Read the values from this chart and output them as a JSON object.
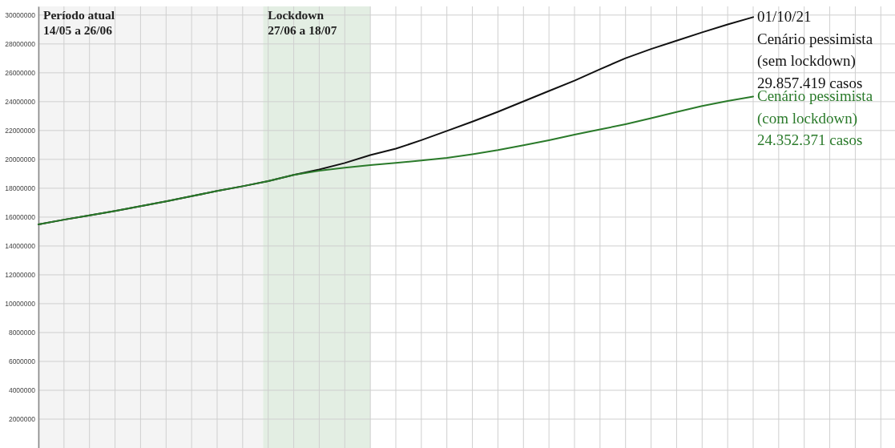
{
  "chart_data": {
    "type": "line",
    "tick_labels": "y",
    "grid": true,
    "categories": [
      null,
      null,
      null,
      null,
      null,
      null,
      null,
      null,
      null,
      null,
      null,
      null,
      null,
      null,
      null,
      null,
      null,
      null,
      null,
      null,
      null,
      null,
      null,
      null,
      null,
      null,
      null,
      null,
      null
    ],
    "ylim": [
      0,
      30600000
    ],
    "yticks": [
      2000000,
      4000000,
      6000000,
      8000000,
      10000000,
      12000000,
      14000000,
      16000000,
      18000000,
      20000000,
      22000000,
      24000000,
      26000000,
      28000000,
      30000000
    ],
    "series": [
      {
        "name": "Cenário pessimista\n(sem lockdown)",
        "color": "#111111",
        "values": [
          15500000,
          15820000,
          16120000,
          16430000,
          16760000,
          17090000,
          17450000,
          17810000,
          18140000,
          18490000,
          18920000,
          19300000,
          19750000,
          20300000,
          20740000,
          21330000,
          21970000,
          22620000,
          23300000,
          24020000,
          24740000,
          25460000,
          26250000,
          27010000,
          27650000,
          28230000,
          28800000,
          29350000,
          29857419
        ]
      },
      {
        "name": "Cenário pessimista\n(com lockdown)",
        "color": "#2a7a2a",
        "values": [
          15500000,
          15820000,
          16120000,
          16430000,
          16760000,
          17090000,
          17450000,
          17810000,
          18140000,
          18490000,
          18920000,
          19220000,
          19420000,
          19600000,
          19750000,
          19920000,
          20100000,
          20350000,
          20640000,
          20980000,
          21330000,
          21710000,
          22070000,
          22440000,
          22850000,
          23280000,
          23700000,
          24050000,
          24352371
        ]
      }
    ],
    "annotations": [
      "Período atual\n14/05 a 26/06",
      "Lockdown\n27/06 a 18/07",
      "01/10/21",
      "29.857.419 casos",
      "24.352.371 casos"
    ]
  }
}
